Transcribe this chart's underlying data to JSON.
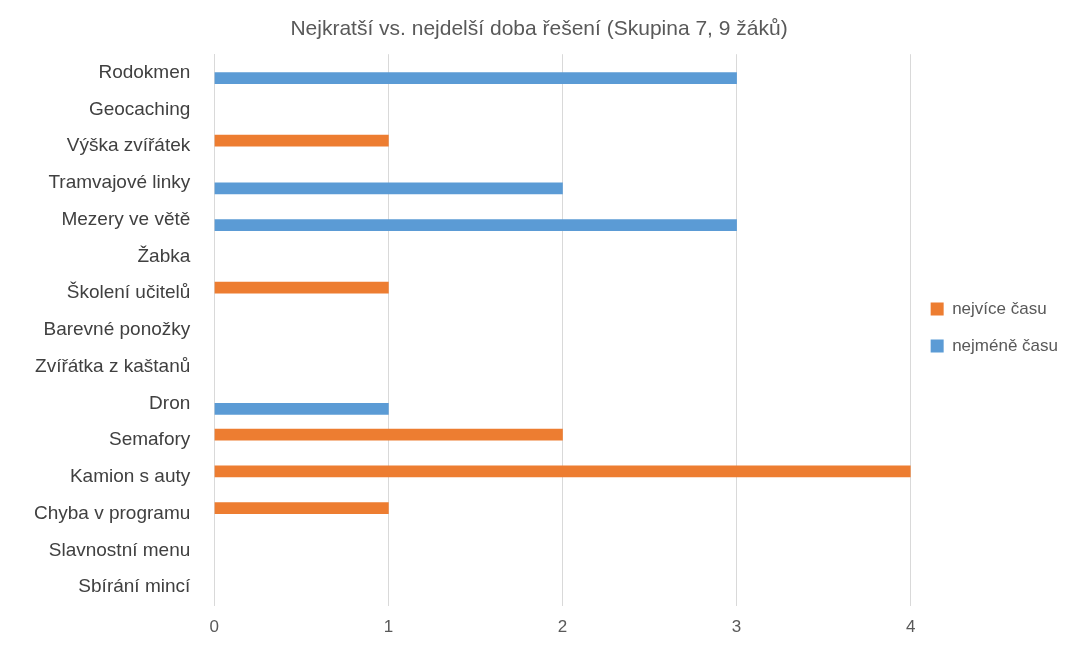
{
  "chart_data": {
    "type": "bar",
    "orientation": "horizontal",
    "title": "Nejkratší vs. nejdelší doba řešení (Skupina 7, 9 žáků)",
    "categories": [
      "Rodokmen",
      "Geocaching",
      "Výška zvířátek",
      "Tramvajové linky",
      "Mezery ve větě",
      "Žabka",
      "Školení učitelů",
      "Barevné ponožky",
      "Zvířátka z kaštanů",
      "Dron",
      "Semafory",
      "Kamion s auty",
      "Chyba v programu",
      "Slavnostní menu",
      "Sbírání mincí"
    ],
    "series": [
      {
        "name": "nejvíce času",
        "color": "#ed7d31",
        "values": [
          null,
          null,
          1,
          null,
          null,
          null,
          1,
          null,
          null,
          null,
          2,
          4,
          1,
          null,
          null
        ]
      },
      {
        "name": "nejméně času",
        "color": "#5b9bd5",
        "values": [
          3,
          null,
          null,
          2,
          3,
          null,
          null,
          null,
          null,
          1,
          null,
          null,
          null,
          null,
          null
        ]
      }
    ],
    "xlim": [
      0,
      4
    ],
    "xticks": [
      0,
      1,
      2,
      3,
      4
    ],
    "grid": "x",
    "legend": "right"
  }
}
